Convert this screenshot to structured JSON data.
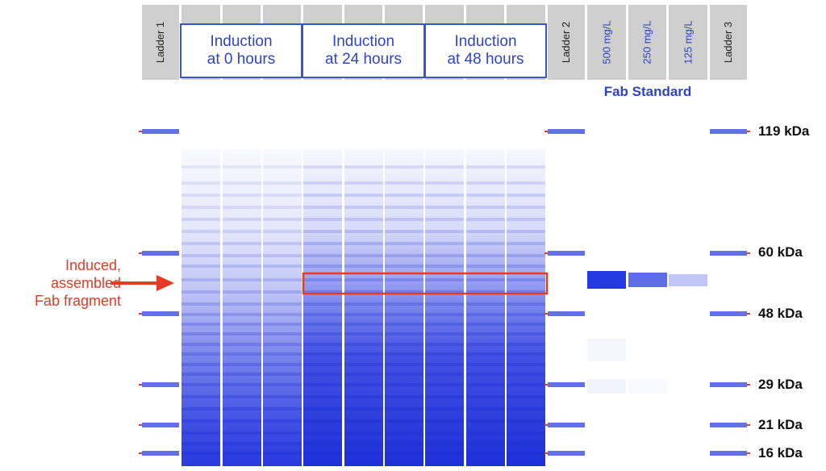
{
  "ladders": {
    "ladder1": "Ladder 1",
    "ladder2": "Ladder 2",
    "ladder3": "Ladder 3"
  },
  "groups": [
    {
      "line1": "Induction",
      "line2": "at 0 hours"
    },
    {
      "line1": "Induction",
      "line2": "at 24 hours"
    },
    {
      "line1": "Induction",
      "line2": "at 48 hours"
    }
  ],
  "standards": {
    "caption": "Fab Standard",
    "concentrations": [
      "500 mg/L",
      "250 mg/L",
      "125 mg/L"
    ]
  },
  "markers": [
    "119 kDa",
    "60 kDa",
    "48 kDa",
    "29 kDa",
    "21 kDa",
    "16 kDa"
  ],
  "annotation": {
    "line1": "Induced,",
    "line2": "assembled",
    "line3": "Fab fragment"
  },
  "colors": {
    "band": "#2233dd",
    "header": "#cfcfcf",
    "group_text": "#2d44c8",
    "highlight": "#e53a24"
  }
}
